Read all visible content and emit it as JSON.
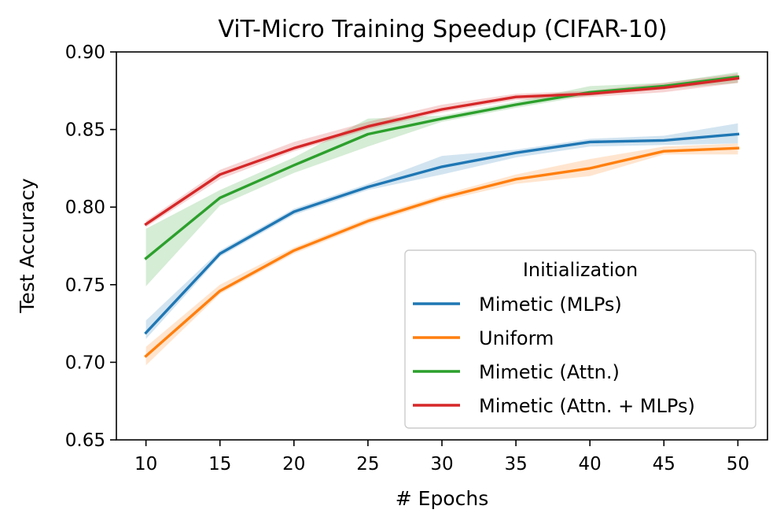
{
  "chart_data": {
    "type": "line",
    "title": "ViT-Micro Training Speedup (CIFAR-10)",
    "xlabel": "# Epochs",
    "ylabel": "Test Accuracy",
    "x": [
      10,
      15,
      20,
      25,
      30,
      35,
      40,
      45,
      50
    ],
    "xlim": [
      8,
      52
    ],
    "ylim": [
      0.65,
      0.9
    ],
    "xticks": [
      10,
      15,
      20,
      25,
      30,
      35,
      40,
      45,
      50
    ],
    "yticks": [
      "0.65",
      "0.70",
      "0.75",
      "0.80",
      "0.85",
      "0.90"
    ],
    "grid": false,
    "legend": {
      "title": "Initialization",
      "placement": "lower-right"
    },
    "series": [
      {
        "name": "Mimetic (MLPs)",
        "color": "#1f77b4",
        "values": [
          0.719,
          0.77,
          0.797,
          0.813,
          0.826,
          0.835,
          0.842,
          0.843,
          0.847
        ],
        "lower": [
          0.715,
          0.768,
          0.795,
          0.811,
          0.821,
          0.832,
          0.839,
          0.84,
          0.841
        ],
        "upper": [
          0.727,
          0.772,
          0.799,
          0.815,
          0.833,
          0.837,
          0.844,
          0.846,
          0.854
        ]
      },
      {
        "name": "Uniform",
        "color": "#ff7f0e",
        "values": [
          0.704,
          0.746,
          0.772,
          0.791,
          0.806,
          0.818,
          0.825,
          0.836,
          0.838
        ],
        "lower": [
          0.698,
          0.744,
          0.77,
          0.789,
          0.804,
          0.815,
          0.82,
          0.834,
          0.834
        ],
        "upper": [
          0.71,
          0.75,
          0.774,
          0.793,
          0.808,
          0.821,
          0.831,
          0.839,
          0.841
        ]
      },
      {
        "name": "Mimetic (Attn.)",
        "color": "#2ca02c",
        "values": [
          0.767,
          0.806,
          0.827,
          0.847,
          0.857,
          0.866,
          0.874,
          0.878,
          0.884
        ],
        "lower": [
          0.749,
          0.801,
          0.822,
          0.839,
          0.855,
          0.864,
          0.872,
          0.876,
          0.88
        ],
        "upper": [
          0.786,
          0.811,
          0.832,
          0.857,
          0.859,
          0.868,
          0.878,
          0.88,
          0.887
        ]
      },
      {
        "name": "Mimetic (Attn. + MLPs)",
        "color": "#d62728",
        "values": [
          0.789,
          0.821,
          0.838,
          0.852,
          0.863,
          0.871,
          0.873,
          0.877,
          0.883
        ],
        "lower": [
          0.787,
          0.818,
          0.836,
          0.85,
          0.861,
          0.869,
          0.871,
          0.874,
          0.88
        ],
        "upper": [
          0.791,
          0.824,
          0.842,
          0.855,
          0.866,
          0.873,
          0.875,
          0.88,
          0.886
        ]
      }
    ]
  }
}
